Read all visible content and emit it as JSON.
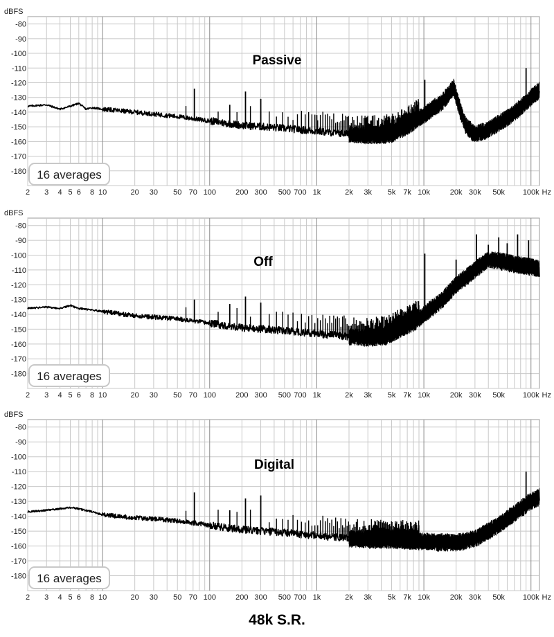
{
  "footer": "48k S.R.",
  "colors": {
    "grid": "#c8c8c8",
    "grid_major": "#8a8a8a",
    "trace": "#000000",
    "frame": "#9a9a9a",
    "badge_border": "#c8c8c8"
  },
  "chart_data": [
    {
      "type": "line",
      "title": "Passive",
      "ylabel": "dBFS",
      "xunit": "Hz",
      "xscale": "log",
      "xlim": [
        2,
        120000
      ],
      "ylim": [
        -190,
        -75
      ],
      "yticks": [
        -80,
        -90,
        -100,
        -110,
        -120,
        -130,
        -140,
        -150,
        -160,
        -170,
        -180
      ],
      "xticks": [
        2,
        3,
        4,
        5,
        6,
        8,
        10,
        20,
        30,
        50,
        70,
        100,
        200,
        300,
        500,
        700,
        1000,
        2000,
        3000,
        5000,
        7000,
        10000,
        20000,
        30000,
        50000,
        100000
      ],
      "xtick_labels": [
        "2",
        "3",
        "4",
        "5",
        "6",
        "8",
        "10",
        "20",
        "30",
        "50",
        "70",
        "100",
        "200",
        "300",
        "500",
        "700",
        "1k",
        "2k",
        "3k",
        "5k",
        "7k",
        "10k",
        "20k",
        "30k",
        "50k",
        "100k"
      ],
      "badge": "16 averages",
      "series": [
        {
          "floor": [
            [
              2,
              -136
            ],
            [
              3,
              -135
            ],
            [
              4,
              -138
            ],
            [
              5,
              -136
            ],
            [
              6,
              -134
            ],
            [
              7,
              -138
            ],
            [
              8,
              -137
            ],
            [
              10,
              -138
            ],
            [
              20,
              -140
            ],
            [
              50,
              -143
            ],
            [
              100,
              -146
            ],
            [
              200,
              -149
            ],
            [
              500,
              -151
            ],
            [
              1000,
              -153
            ],
            [
              2000,
              -155
            ],
            [
              3000,
              -156
            ],
            [
              4000,
              -156
            ],
            [
              5000,
              -155
            ],
            [
              7000,
              -150
            ],
            [
              10000,
              -142
            ],
            [
              15000,
              -133
            ],
            [
              19000,
              -123
            ],
            [
              22000,
              -140
            ],
            [
              25000,
              -150
            ],
            [
              30000,
              -155
            ],
            [
              40000,
              -152
            ],
            [
              60000,
              -144
            ],
            [
              80000,
              -137
            ],
            [
              100000,
              -130
            ],
            [
              120000,
              -125
            ]
          ],
          "spurs": [
            [
              72,
              -124
            ],
            [
              154,
              -135
            ],
            [
              216,
              -126
            ],
            [
              300,
              -131
            ],
            [
              1000,
              -142
            ],
            [
              10200,
              -118
            ],
            [
              19000,
              -122
            ],
            [
              90000,
              -110
            ]
          ]
        }
      ]
    },
    {
      "type": "line",
      "title": "Off",
      "ylabel": "dBFS",
      "xunit": "Hz",
      "xscale": "log",
      "xlim": [
        2,
        120000
      ],
      "ylim": [
        -190,
        -75
      ],
      "yticks": [
        -80,
        -90,
        -100,
        -110,
        -120,
        -130,
        -140,
        -150,
        -160,
        -170,
        -180
      ],
      "xticks": [
        2,
        3,
        4,
        5,
        6,
        8,
        10,
        20,
        30,
        50,
        70,
        100,
        200,
        300,
        500,
        700,
        1000,
        2000,
        3000,
        5000,
        7000,
        10000,
        20000,
        30000,
        50000,
        100000
      ],
      "xtick_labels": [
        "2",
        "3",
        "4",
        "5",
        "6",
        "8",
        "10",
        "20",
        "30",
        "50",
        "70",
        "100",
        "200",
        "300",
        "500",
        "700",
        "1k",
        "2k",
        "3k",
        "5k",
        "7k",
        "10k",
        "20k",
        "30k",
        "50k",
        "100k"
      ],
      "badge": "16 averages",
      "series": [
        {
          "floor": [
            [
              2,
              -136
            ],
            [
              3,
              -135
            ],
            [
              4,
              -136
            ],
            [
              5,
              -134
            ],
            [
              6,
              -136
            ],
            [
              8,
              -137
            ],
            [
              10,
              -138
            ],
            [
              20,
              -141
            ],
            [
              50,
              -143
            ],
            [
              100,
              -146
            ],
            [
              200,
              -149
            ],
            [
              500,
              -151
            ],
            [
              1000,
              -153
            ],
            [
              2000,
              -155
            ],
            [
              3000,
              -156
            ],
            [
              4500,
              -155
            ],
            [
              6000,
              -150
            ],
            [
              8000,
              -146
            ],
            [
              10000,
              -140
            ],
            [
              15000,
              -130
            ],
            [
              20000,
              -120
            ],
            [
              30000,
              -110
            ],
            [
              40000,
              -103
            ],
            [
              50000,
              -104
            ],
            [
              70000,
              -106
            ],
            [
              100000,
              -108
            ],
            [
              120000,
              -109
            ]
          ],
          "spurs": [
            [
              72,
              -130
            ],
            [
              154,
              -133
            ],
            [
              216,
              -128
            ],
            [
              300,
              -132
            ],
            [
              10200,
              -99
            ],
            [
              20000,
              -103
            ],
            [
              31000,
              -86
            ],
            [
              40000,
              -93
            ],
            [
              50000,
              -88
            ],
            [
              60000,
              -92
            ],
            [
              75000,
              -86
            ],
            [
              95000,
              -90
            ]
          ]
        }
      ]
    },
    {
      "type": "line",
      "title": "Digital",
      "ylabel": "dBFS",
      "xunit": "Hz",
      "xscale": "log",
      "xlim": [
        2,
        120000
      ],
      "ylim": [
        -190,
        -75
      ],
      "yticks": [
        -80,
        -90,
        -100,
        -110,
        -120,
        -130,
        -140,
        -150,
        -160,
        -170,
        -180
      ],
      "xticks": [
        2,
        3,
        4,
        5,
        6,
        8,
        10,
        20,
        30,
        50,
        70,
        100,
        200,
        300,
        500,
        700,
        1000,
        2000,
        3000,
        5000,
        7000,
        10000,
        20000,
        30000,
        50000,
        100000
      ],
      "xtick_labels": [
        "2",
        "3",
        "4",
        "5",
        "6",
        "8",
        "10",
        "20",
        "30",
        "50",
        "70",
        "100",
        "200",
        "300",
        "500",
        "700",
        "1k",
        "2k",
        "3k",
        "5k",
        "7k",
        "10k",
        "20k",
        "30k",
        "50k",
        "100k"
      ],
      "badge": "16 averages",
      "series": [
        {
          "floor": [
            [
              2,
              -137
            ],
            [
              3,
              -136
            ],
            [
              4,
              -135
            ],
            [
              5,
              -134
            ],
            [
              6,
              -135
            ],
            [
              8,
              -137
            ],
            [
              10,
              -139
            ],
            [
              20,
              -141
            ],
            [
              50,
              -143
            ],
            [
              100,
              -146
            ],
            [
              200,
              -149
            ],
            [
              500,
              -151
            ],
            [
              1000,
              -153
            ],
            [
              2000,
              -155
            ],
            [
              3000,
              -156
            ],
            [
              5000,
              -156
            ],
            [
              10000,
              -157
            ],
            [
              20000,
              -158
            ],
            [
              30000,
              -155
            ],
            [
              50000,
              -146
            ],
            [
              70000,
              -138
            ],
            [
              100000,
              -130
            ],
            [
              120000,
              -127
            ]
          ],
          "spurs": [
            [
              72,
              -124
            ],
            [
              154,
              -136
            ],
            [
              216,
              -128
            ],
            [
              300,
              -126
            ],
            [
              90000,
              -110
            ]
          ]
        }
      ]
    }
  ]
}
